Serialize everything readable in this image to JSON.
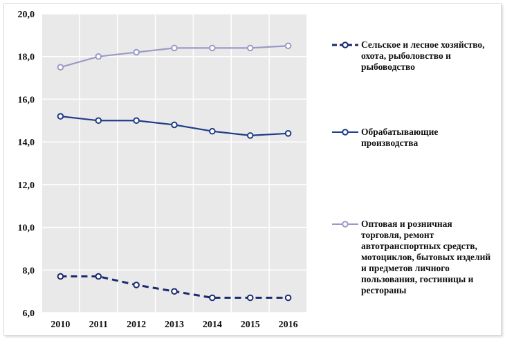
{
  "chart_data": {
    "type": "line",
    "title": "",
    "xlabel": "",
    "ylabel": "",
    "x": [
      "2010",
      "2011",
      "2012",
      "2013",
      "2014",
      "2015",
      "2016"
    ],
    "ylim": [
      6.0,
      20.0
    ],
    "yticks": [
      "6,0",
      "8,0",
      "10,0",
      "12,0",
      "14,0",
      "16,0",
      "18,0",
      "20,0"
    ],
    "grid": "vertical and horizontal",
    "legend_position": "right",
    "series": [
      {
        "name": "Сельское и лесное хозяйство, охота, рыболовство и рыбоводство",
        "values": [
          7.7,
          7.7,
          7.3,
          7.0,
          6.7,
          6.7,
          6.7
        ],
        "color": "#1a2a6e",
        "style": "dashed"
      },
      {
        "name": "Обрабатывающие производства",
        "values": [
          15.2,
          15.0,
          15.0,
          14.8,
          14.5,
          14.3,
          14.4
        ],
        "color": "#1f3c88",
        "style": "solid"
      },
      {
        "name": "Оптовая и розничная торговля, ремонт автотранспортных средств, мотоциклов, бытовых изделий и предметов личного пользования, гостиницы и рестораны",
        "values": [
          17.5,
          18.0,
          18.2,
          18.4,
          18.4,
          18.4,
          18.5
        ],
        "color": "#9a9ac8",
        "style": "solid"
      }
    ]
  }
}
